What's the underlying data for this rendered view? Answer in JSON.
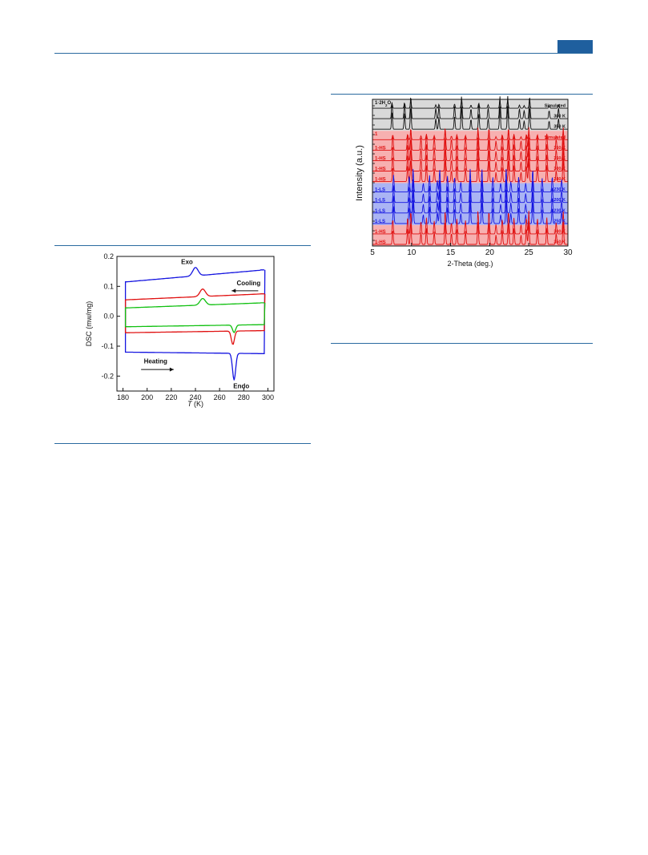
{
  "colors": {
    "accent": "#1f5f9e",
    "blue": "#1515e0",
    "red": "#e01010",
    "green": "#10c010",
    "black": "#111111",
    "gray_panel": "#d9d9d9",
    "red_panel": "#f7b0b0",
    "blue_panel": "#aab4f4"
  },
  "dsc_figure": {
    "chart_data": {
      "type": "line",
      "xlabel": "T (K)",
      "xlabel_italic": "T",
      "xlabel_unit": " (K)",
      "ylabel": "DSC (mw/mg)",
      "xlim": [
        175,
        305
      ],
      "ylim": [
        -0.25,
        0.2
      ],
      "x_ticks": [
        180,
        200,
        220,
        240,
        260,
        280,
        300
      ],
      "y_ticks": [
        -0.2,
        -0.1,
        0.0,
        0.1,
        0.2
      ],
      "y_tick_labels": [
        "-0.2",
        "-0.1",
        "0.0",
        "0.1",
        "0.2"
      ],
      "annotations": {
        "exo": "Exo",
        "endo": "Endo",
        "cooling": "Cooling",
        "heating": "Heating"
      },
      "series": [
        {
          "color": "#1515e0",
          "cool_base": 0.115,
          "cool_end": 0.155,
          "cool_peak_x": 240,
          "cool_peak_h": 0.028,
          "heat_base": -0.12,
          "heat_end": -0.125,
          "heat_peak_x": 272,
          "heat_peak_h": 0.09,
          "x_min": 183,
          "x_max": 297
        },
        {
          "color": "#e01010",
          "cool_base": 0.055,
          "cool_end": 0.075,
          "cool_peak_x": 246,
          "cool_peak_h": 0.025,
          "heat_base": -0.055,
          "heat_end": -0.048,
          "heat_peak_x": 271,
          "heat_peak_h": 0.045,
          "x_min": 183,
          "x_max": 297
        },
        {
          "color": "#10c010",
          "cool_base": 0.028,
          "cool_end": 0.045,
          "cool_peak_x": 246,
          "cool_peak_h": 0.022,
          "heat_base": -0.035,
          "heat_end": -0.028,
          "heat_peak_x": 272,
          "heat_peak_h": 0.025,
          "x_min": 183,
          "x_max": 297
        }
      ]
    }
  },
  "pxrd_figure": {
    "chart_data": {
      "type": "line",
      "xlabel": "2-Theta (deg.)",
      "ylabel": "Intensity (a.u.)",
      "xlim": [
        5,
        30
      ],
      "x_ticks": [
        5,
        10,
        15,
        20,
        25,
        30
      ],
      "tick_labels": [
        "5",
        "10",
        "15",
        "20",
        "25",
        "30"
      ],
      "peaks_hydrate": [
        7.5,
        9.1,
        9.9,
        13.1,
        13.5,
        15.5,
        16.4,
        17.6,
        18.6,
        19.8,
        21.3,
        22.3,
        23.8,
        24.4,
        25.1,
        27.6,
        28.8
      ],
      "peaks_hs": [
        7.6,
        9.5,
        9.9,
        11.2,
        11.9,
        12.9,
        14.3,
        15.1,
        15.8,
        16.9,
        18.5,
        19.9,
        20.8,
        21.6,
        22.4,
        23.1,
        24.0,
        24.7,
        25.0,
        26.1,
        27.3,
        28.5,
        29.4
      ],
      "peaks_ls": [
        7.7,
        9.7,
        10.2,
        11.5,
        12.3,
        13.3,
        13.6,
        14.6,
        15.5,
        16.3,
        17.5,
        19.0,
        20.4,
        21.4,
        22.1,
        22.7,
        23.7,
        24.6,
        25.5,
        26.7,
        28.0,
        29.2
      ],
      "groups": [
        {
          "title_main": "1·2H",
          "title_sub": "2",
          "title_tail": "O",
          "panel": "gray",
          "rows": [
            {
              "label": "",
              "temp": "Simulated",
              "color": "#111111",
              "pattern": "hydrate",
              "sim": true
            },
            {
              "label": "",
              "temp": "300 K",
              "color": "#111111",
              "pattern": "hydrate",
              "sim": false
            },
            {
              "label": "",
              "temp": "350 K",
              "color": "#111111",
              "pattern": "hydrate",
              "sim": false
            }
          ]
        },
        {
          "title_main": "1",
          "title_sub": "",
          "title_tail": "",
          "panel": "red",
          "rows": [
            {
              "label": "",
              "temp": "Simulated",
              "color": "#e01010",
              "pattern": "hs",
              "sim": true
            },
            {
              "label": "1-HS",
              "temp": "350 K",
              "color": "#e01010",
              "pattern": "hs",
              "sim": false
            },
            {
              "label": "1-HS",
              "temp": "350 K",
              "color": "#e01010",
              "pattern": "hs",
              "sim": false
            },
            {
              "label": "1-HS",
              "temp": "300 K",
              "color": "#e01010",
              "pattern": "hs",
              "sim": false
            },
            {
              "label": "1-HS",
              "temp": "240 K",
              "color": "#e01010",
              "pattern": "hs",
              "sim": false
            }
          ]
        },
        {
          "title_main": "",
          "title_sub": "",
          "title_tail": "",
          "panel": "blue",
          "rows": [
            {
              "label": "1-LS",
              "temp": "230 K",
              "color": "#1515e0",
              "pattern": "ls",
              "sim": false
            },
            {
              "label": "1-LS",
              "temp": "200 K",
              "color": "#1515e0",
              "pattern": "ls",
              "sim": false
            },
            {
              "label": "1-LS",
              "temp": "230 K",
              "color": "#1515e0",
              "pattern": "ls",
              "sim": false
            },
            {
              "label": "1-LS",
              "temp": "250 K",
              "color": "#1515e0",
              "pattern": "ls",
              "sim": false
            }
          ]
        },
        {
          "title_main": "",
          "title_sub": "",
          "title_tail": "",
          "panel": "red",
          "rows": [
            {
              "label": "1-HS",
              "temp": "300 K",
              "color": "#e01010",
              "pattern": "hs",
              "sim": false
            },
            {
              "label": "1-HS",
              "temp": "350 K",
              "color": "#e01010",
              "pattern": "hs",
              "sim": false
            }
          ]
        }
      ]
    }
  }
}
